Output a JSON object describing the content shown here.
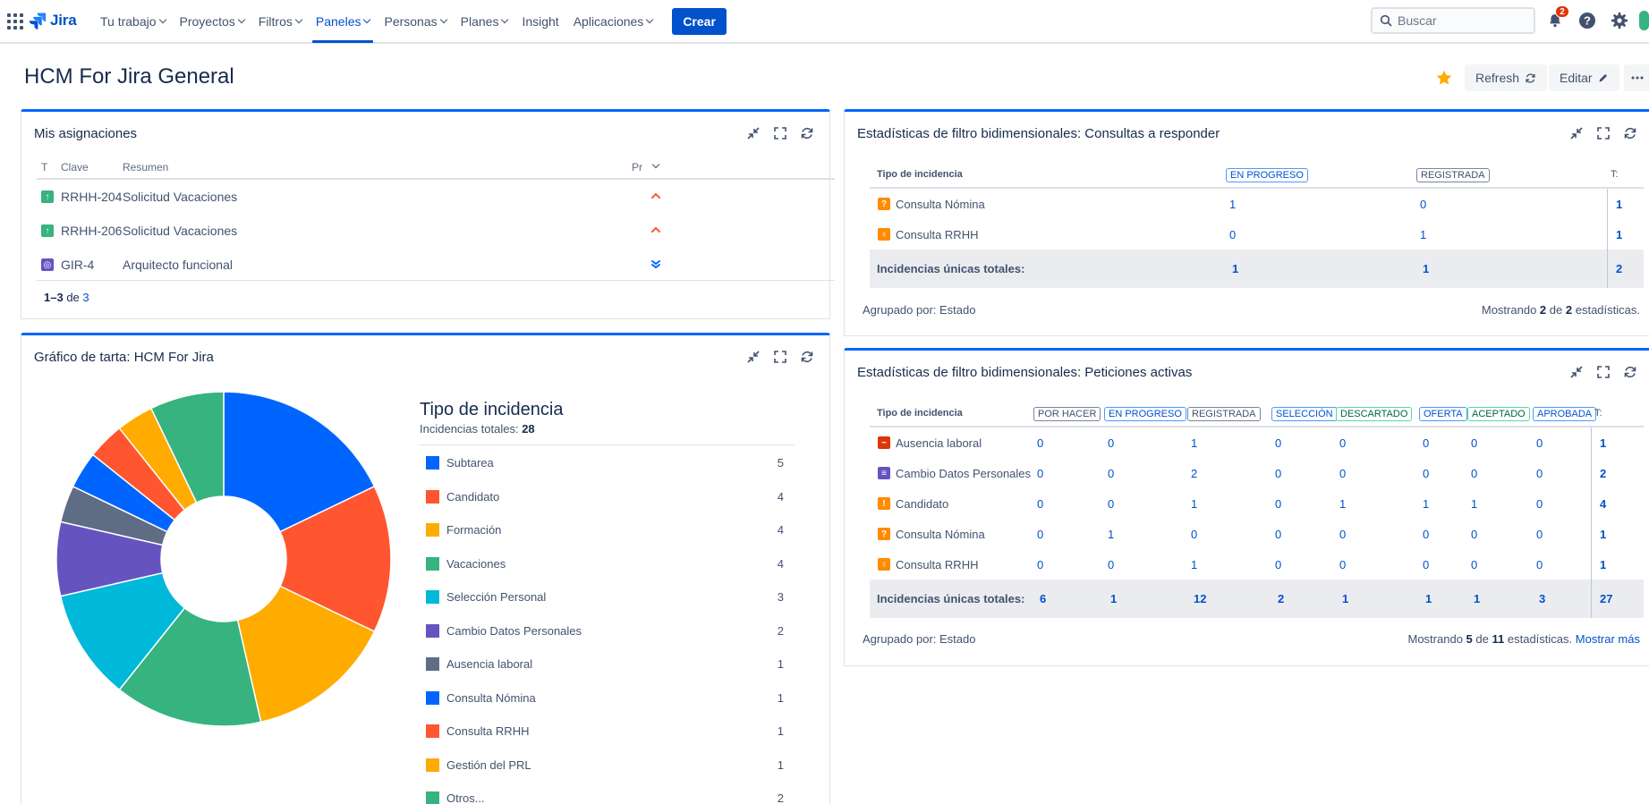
{
  "nav": {
    "logo": "Jira",
    "items": [
      {
        "label": "Tu trabajo",
        "active": false
      },
      {
        "label": "Proyectos",
        "active": false
      },
      {
        "label": "Filtros",
        "active": false
      },
      {
        "label": "Paneles",
        "active": true
      },
      {
        "label": "Personas",
        "active": false
      },
      {
        "label": "Planes",
        "active": false
      },
      {
        "label": "Insight",
        "active": false
      },
      {
        "label": "Aplicaciones",
        "active": false
      }
    ],
    "create_label": "Crear",
    "search_placeholder": "Buscar",
    "notifications_count": "2"
  },
  "page": {
    "title": "HCM For Jira General",
    "refresh_label": "Refresh",
    "edit_label": "Editar"
  },
  "assignments": {
    "title": "Mis asignaciones",
    "columns": {
      "type": "T",
      "key": "Clave",
      "summary": "Resumen",
      "priority": "Pr"
    },
    "rows": [
      {
        "key": "RRHH-204",
        "summary": "Solicitud Vacaciones",
        "type_color": "#36b37e",
        "type_icon": "arrow-up-icon",
        "priority": "high"
      },
      {
        "key": "RRHH-206",
        "summary": "Solicitud Vacaciones",
        "type_color": "#36b37e",
        "type_icon": "arrow-up-icon",
        "priority": "high"
      },
      {
        "key": "GIR-4",
        "summary": "Arquitecto funcional",
        "type_color": "#6554c0",
        "type_icon": "target-icon",
        "priority": "lowest"
      }
    ],
    "footer": {
      "range": "1–3",
      "of_label": "de",
      "total": "3"
    }
  },
  "pie": {
    "title": "Gráfico de tarta: HCM For Jira",
    "legend_title": "Tipo de incidencia",
    "total_label": "Incidencias totales:",
    "total_value": "28"
  },
  "chart_data": {
    "type": "pie",
    "title": "Tipo de incidencia",
    "total": 28,
    "categories": [
      "Subtarea",
      "Candidato",
      "Formación",
      "Vacaciones",
      "Selección Personal",
      "Cambio Datos Personales",
      "Ausencia laboral",
      "Consulta Nómina",
      "Consulta RRHH",
      "Gestión del PRL",
      "Otros..."
    ],
    "values": [
      5,
      4,
      4,
      4,
      3,
      2,
      1,
      1,
      1,
      1,
      2
    ],
    "colors": [
      "#0065ff",
      "#ff5630",
      "#ffab00",
      "#36b37e",
      "#00b8d9",
      "#6554c0",
      "#5e6c84",
      "#0065ff",
      "#ff5630",
      "#ffab00",
      "#36b37e"
    ]
  },
  "stats1": {
    "title": "Estadísticas de filtro bidimensionales: Consultas a responder",
    "header_label": "Tipo de incidencia",
    "columns": [
      {
        "label": "EN PROGRESO",
        "style": "blue"
      },
      {
        "label": "REGISTRADA",
        "style": "grey"
      }
    ],
    "total_col_label": "T:",
    "rows": [
      {
        "name": "Consulta Nómina",
        "color": "#ff8b00",
        "icon": "question-icon",
        "values": [
          "1",
          "0"
        ],
        "total": "1"
      },
      {
        "name": "Consulta RRHH",
        "color": "#ff8b00",
        "icon": "bulb-icon",
        "values": [
          "0",
          "1"
        ],
        "total": "1"
      }
    ],
    "totals_label": "Incidencias únicas totales:",
    "totals": [
      "1",
      "1"
    ],
    "grand_total": "2",
    "grouped_by": "Agrupado por: Estado",
    "showing_prefix": "Mostrando",
    "showing_count": "2",
    "showing_of": "de",
    "showing_total": "2",
    "showing_suffix": "estadísticas."
  },
  "stats2": {
    "title": "Estadísticas de filtro bidimensionales: Peticiones activas",
    "header_label": "Tipo de incidencia",
    "columns": [
      {
        "label": "POR HACER",
        "style": "grey"
      },
      {
        "label": "EN PROGRESO",
        "style": "blue"
      },
      {
        "label": "REGISTRADA",
        "style": "grey"
      },
      {
        "label": "SELECCIÓN",
        "style": "blue"
      },
      {
        "label": "DESCARTADO",
        "style": "green"
      },
      {
        "label": "OFERTA",
        "style": "blue"
      },
      {
        "label": "ACEPTADO",
        "style": "green"
      },
      {
        "label": "APROBADA",
        "style": "blue"
      }
    ],
    "total_col_label": "T:",
    "rows": [
      {
        "name": "Ausencia laboral",
        "color": "#de350b",
        "icon": "pulse-icon",
        "values": [
          "0",
          "0",
          "1",
          "0",
          "0",
          "0",
          "0",
          "0"
        ],
        "total": "1"
      },
      {
        "name": "Cambio Datos Personales",
        "color": "#6554c0",
        "icon": "list-icon",
        "values": [
          "0",
          "0",
          "2",
          "0",
          "0",
          "0",
          "0",
          "0"
        ],
        "total": "2"
      },
      {
        "name": "Candidato",
        "color": "#ff8b00",
        "icon": "alert-icon",
        "values": [
          "0",
          "0",
          "1",
          "0",
          "1",
          "1",
          "1",
          "0"
        ],
        "total": "4"
      },
      {
        "name": "Consulta Nómina",
        "color": "#ff8b00",
        "icon": "question-icon",
        "values": [
          "0",
          "1",
          "0",
          "0",
          "0",
          "0",
          "0",
          "0"
        ],
        "total": "1"
      },
      {
        "name": "Consulta RRHH",
        "color": "#ff8b00",
        "icon": "bulb-icon",
        "values": [
          "0",
          "0",
          "1",
          "0",
          "0",
          "0",
          "0",
          "0"
        ],
        "total": "1"
      }
    ],
    "totals_label": "Incidencias únicas totales:",
    "totals": [
      "6",
      "1",
      "12",
      "2",
      "1",
      "1",
      "1",
      "3"
    ],
    "grand_total": "27",
    "grouped_by": "Agrupado por: Estado",
    "showing_prefix": "Mostrando",
    "showing_count": "5",
    "showing_of": "de",
    "showing_total": "11",
    "showing_suffix": "estadísticas.",
    "more_label": "Mostrar más"
  }
}
